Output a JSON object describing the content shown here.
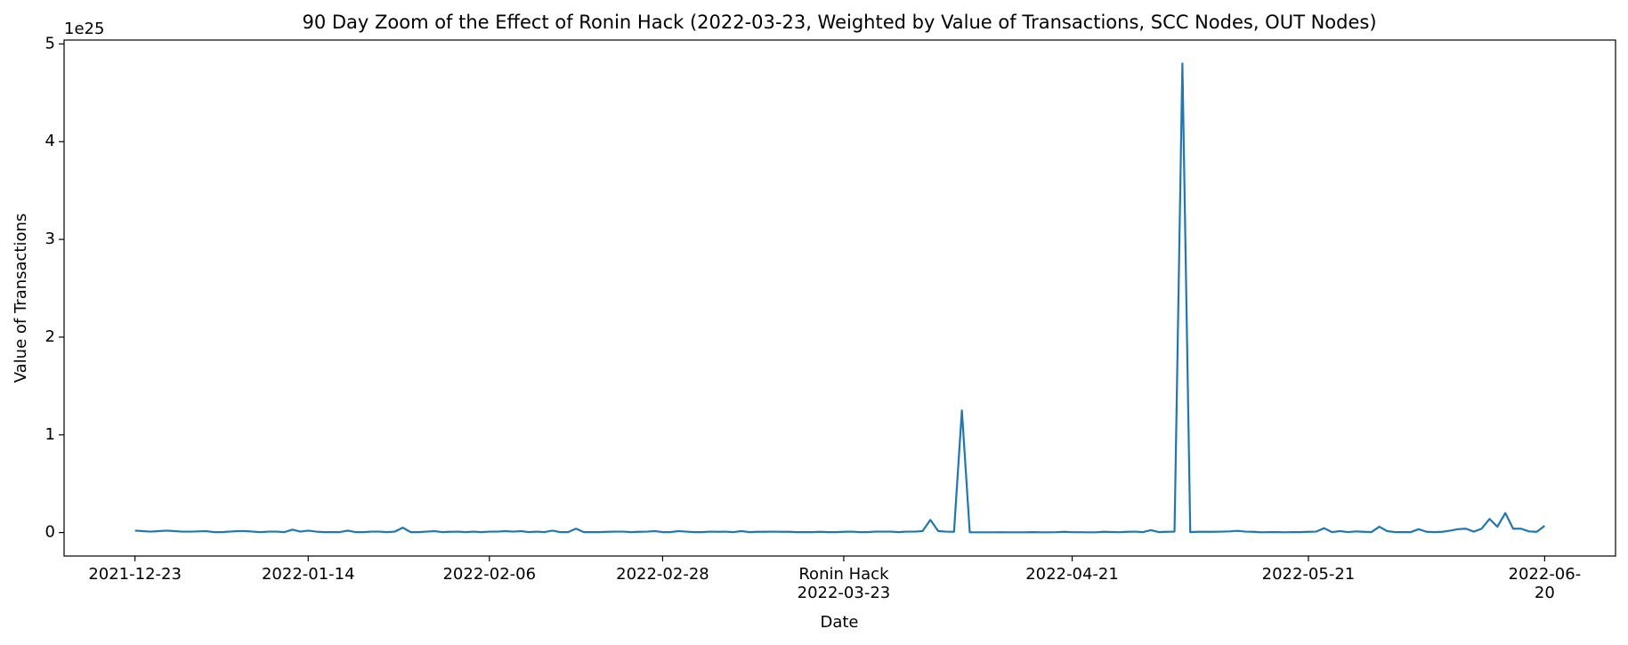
{
  "chart_data": {
    "type": "line",
    "title": "90 Day Zoom of the Effect of Ronin Hack (2022-03-23, Weighted by Value of Transactions, SCC Nodes, OUT Nodes)",
    "xlabel": "Date",
    "ylabel": "Value of Transactions",
    "y_offset_label": "1e25",
    "color": "#1f77b4",
    "x": [
      "2021-12-23",
      "2021-12-24",
      "2021-12-25",
      "2021-12-26",
      "2021-12-27",
      "2021-12-28",
      "2021-12-29",
      "2021-12-30",
      "2021-12-31",
      "2022-01-01",
      "2022-01-02",
      "2022-01-03",
      "2022-01-04",
      "2022-01-05",
      "2022-01-06",
      "2022-01-07",
      "2022-01-08",
      "2022-01-09",
      "2022-01-10",
      "2022-01-11",
      "2022-01-12",
      "2022-01-13",
      "2022-01-14",
      "2022-01-15",
      "2022-01-16",
      "2022-01-17",
      "2022-01-18",
      "2022-01-19",
      "2022-01-20",
      "2022-01-21",
      "2022-01-22",
      "2022-01-23",
      "2022-01-24",
      "2022-01-25",
      "2022-01-26",
      "2022-01-27",
      "2022-01-28",
      "2022-01-29",
      "2022-01-30",
      "2022-01-31",
      "2022-02-01",
      "2022-02-02",
      "2022-02-03",
      "2022-02-04",
      "2022-02-05",
      "2022-02-06",
      "2022-02-07",
      "2022-02-08",
      "2022-02-09",
      "2022-02-10",
      "2022-02-11",
      "2022-02-12",
      "2022-02-13",
      "2022-02-14",
      "2022-02-15",
      "2022-02-16",
      "2022-02-17",
      "2022-02-18",
      "2022-02-19",
      "2022-02-20",
      "2022-02-21",
      "2022-02-22",
      "2022-02-23",
      "2022-02-24",
      "2022-02-25",
      "2022-02-26",
      "2022-02-27",
      "2022-02-28",
      "2022-03-01",
      "2022-03-02",
      "2022-03-03",
      "2022-03-04",
      "2022-03-05",
      "2022-03-06",
      "2022-03-07",
      "2022-03-08",
      "2022-03-09",
      "2022-03-10",
      "2022-03-11",
      "2022-03-12",
      "2022-03-13",
      "2022-03-14",
      "2022-03-15",
      "2022-03-16",
      "2022-03-17",
      "2022-03-18",
      "2022-03-19",
      "2022-03-20",
      "2022-03-21",
      "2022-03-22",
      "2022-03-23",
      "2022-03-24",
      "2022-03-25",
      "2022-03-26",
      "2022-03-27",
      "2022-03-28",
      "2022-03-29",
      "2022-03-30",
      "2022-03-31",
      "2022-04-01",
      "2022-04-02",
      "2022-04-03",
      "2022-04-04",
      "2022-04-05",
      "2022-04-06",
      "2022-04-07",
      "2022-04-08",
      "2022-04-09",
      "2022-04-10",
      "2022-04-11",
      "2022-04-12",
      "2022-04-13",
      "2022-04-14",
      "2022-04-15",
      "2022-04-16",
      "2022-04-17",
      "2022-04-18",
      "2022-04-19",
      "2022-04-20",
      "2022-04-21",
      "2022-04-22",
      "2022-04-23",
      "2022-04-24",
      "2022-04-25",
      "2022-04-26",
      "2022-04-27",
      "2022-04-28",
      "2022-04-29",
      "2022-04-30",
      "2022-05-01",
      "2022-05-02",
      "2022-05-03",
      "2022-05-04",
      "2022-05-05",
      "2022-05-06",
      "2022-05-07",
      "2022-05-08",
      "2022-05-09",
      "2022-05-10",
      "2022-05-11",
      "2022-05-12",
      "2022-05-13",
      "2022-05-14",
      "2022-05-15",
      "2022-05-16",
      "2022-05-17",
      "2022-05-18",
      "2022-05-19",
      "2022-05-20",
      "2022-05-21",
      "2022-05-22",
      "2022-05-23",
      "2022-05-24",
      "2022-05-25",
      "2022-05-26",
      "2022-05-27",
      "2022-05-28",
      "2022-05-29",
      "2022-05-30",
      "2022-05-31",
      "2022-06-01",
      "2022-06-02",
      "2022-06-03",
      "2022-06-04",
      "2022-06-05",
      "2022-06-06",
      "2022-06-07",
      "2022-06-08",
      "2022-06-09",
      "2022-06-10",
      "2022-06-11",
      "2022-06-12",
      "2022-06-13",
      "2022-06-14",
      "2022-06-15",
      "2022-06-16",
      "2022-06-17",
      "2022-06-18",
      "2022-06-19",
      "2022-06-20"
    ],
    "values": [
      0.02,
      0.015,
      0.01,
      0.015,
      0.02,
      0.015,
      0.01,
      0.01,
      0.012,
      0.015,
      0.005,
      0.005,
      0.01,
      0.015,
      0.015,
      0.01,
      0.005,
      0.01,
      0.01,
      0.005,
      0.03,
      0.01,
      0.02,
      0.01,
      0.005,
      0.005,
      0.005,
      0.02,
      0.005,
      0.005,
      0.01,
      0.01,
      0.005,
      0.01,
      0.05,
      0.005,
      0.005,
      0.01,
      0.015,
      0.005,
      0.008,
      0.01,
      0.005,
      0.01,
      0.005,
      0.01,
      0.01,
      0.015,
      0.01,
      0.015,
      0.005,
      0.01,
      0.005,
      0.02,
      0.005,
      0.005,
      0.04,
      0.005,
      0.005,
      0.005,
      0.008,
      0.01,
      0.01,
      0.005,
      0.008,
      0.01,
      0.015,
      0.005,
      0.005,
      0.015,
      0.01,
      0.005,
      0.005,
      0.01,
      0.008,
      0.01,
      0.005,
      0.015,
      0.005,
      0.008,
      0.008,
      0.01,
      0.008,
      0.008,
      0.005,
      0.005,
      0.005,
      0.008,
      0.005,
      0.005,
      0.008,
      0.01,
      0.005,
      0.005,
      0.01,
      0.01,
      0.01,
      0.005,
      0.01,
      0.01,
      0.015,
      0.13,
      0.015,
      0.01,
      0.008,
      1.25,
      0.003,
      0.003,
      0.003,
      0.003,
      0.004,
      0.003,
      0.003,
      0.003,
      0.005,
      0.003,
      0.003,
      0.004,
      0.008,
      0.004,
      0.004,
      0.003,
      0.003,
      0.008,
      0.006,
      0.004,
      0.008,
      0.01,
      0.005,
      0.025,
      0.005,
      0.008,
      0.01,
      4.8,
      0.005,
      0.008,
      0.008,
      0.008,
      0.01,
      0.012,
      0.018,
      0.01,
      0.008,
      0.003,
      0.005,
      0.005,
      0.003,
      0.005,
      0.005,
      0.008,
      0.01,
      0.045,
      0.005,
      0.015,
      0.005,
      0.012,
      0.008,
      0.005,
      0.06,
      0.015,
      0.005,
      0.005,
      0.005,
      0.035,
      0.008,
      0.005,
      0.008,
      0.02,
      0.035,
      0.04,
      0.01,
      0.04,
      0.14,
      0.06,
      0.2,
      0.04,
      0.04,
      0.012,
      0.008,
      0.07
    ],
    "xlim": [
      "2021-12-14",
      "2022-06-29"
    ],
    "xticks": [
      "2021-12-23",
      "2022-01-14",
      "2022-02-06",
      "2022-02-28",
      {
        "value": "2022-03-23",
        "label": "Ronin Hack\n2022-03-23"
      },
      "2022-04-21",
      "2022-05-21",
      "2022-06-20"
    ],
    "ylim": [
      -0.24,
      5.04
    ],
    "yticks": [
      0,
      1,
      2,
      3,
      4,
      5
    ]
  }
}
